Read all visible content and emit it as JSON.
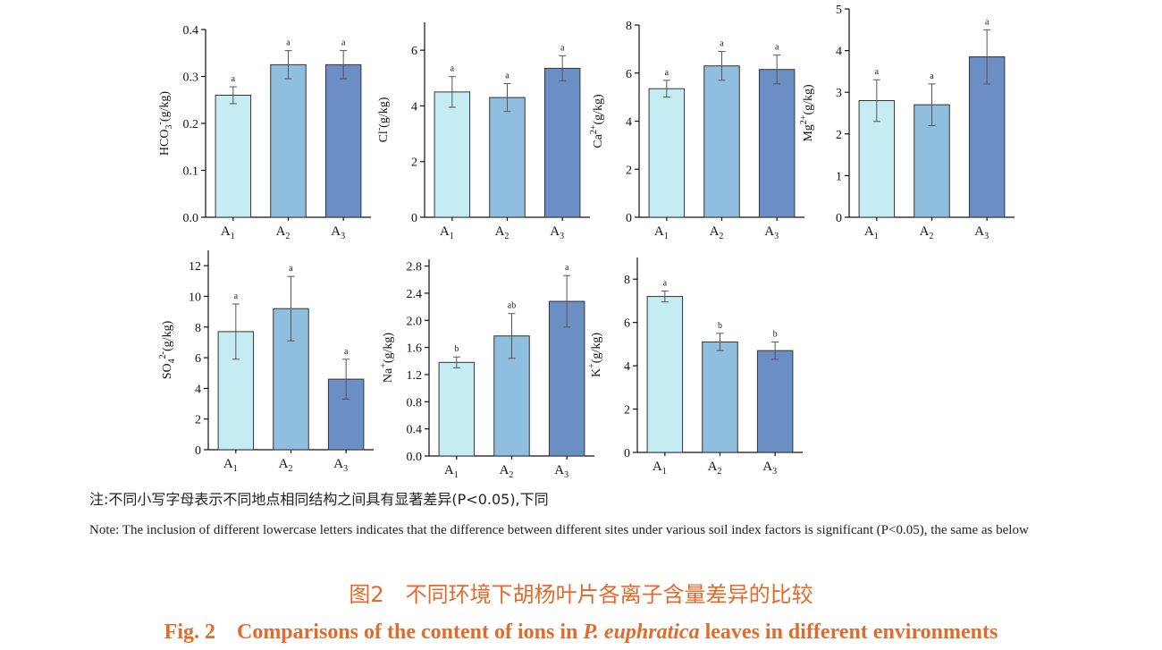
{
  "colors": {
    "A1": "#c5ecf2",
    "A2": "#8fbedf",
    "A3": "#6b8fc4",
    "title": "#e46a2a"
  },
  "chart_data": [
    {
      "type": "bar",
      "categories": [
        "A1",
        "A2",
        "A3"
      ],
      "values": [
        0.26,
        0.325,
        0.325
      ],
      "errors": [
        0.018,
        0.03,
        0.03
      ],
      "significance": [
        "a",
        "a",
        "a"
      ],
      "ylim": [
        0,
        0.4
      ],
      "yticks": [
        "0.0",
        "0.1",
        "0.2",
        "0.3",
        "0.4"
      ],
      "ylabel": "HCO3-(g/kg)",
      "grid": false
    },
    {
      "type": "bar",
      "categories": [
        "A1",
        "A2",
        "A3"
      ],
      "values": [
        4.5,
        4.3,
        5.35
      ],
      "errors": [
        0.55,
        0.5,
        0.45
      ],
      "significance": [
        "a",
        "a",
        "a"
      ],
      "ylim": [
        0,
        7
      ],
      "yticks": [
        "0",
        "2",
        "4",
        "6"
      ],
      "ylabel": "Cl-(g/kg)",
      "grid": false
    },
    {
      "type": "bar",
      "categories": [
        "A1",
        "A2",
        "A3"
      ],
      "values": [
        5.35,
        6.3,
        6.15
      ],
      "errors": [
        0.35,
        0.6,
        0.6
      ],
      "significance": [
        "a",
        "a",
        "a"
      ],
      "ylim": [
        0,
        8
      ],
      "yticks": [
        "0",
        "2",
        "4",
        "6",
        "8"
      ],
      "ylabel": "Ca2+(g/kg)",
      "grid": false
    },
    {
      "type": "bar",
      "categories": [
        "A1",
        "A2",
        "A3"
      ],
      "values": [
        2.8,
        2.7,
        3.85
      ],
      "errors": [
        0.5,
        0.5,
        0.65
      ],
      "significance": [
        "a",
        "a",
        "a"
      ],
      "ylim": [
        0,
        5
      ],
      "yticks": [
        "0",
        "1",
        "2",
        "3",
        "4",
        "5"
      ],
      "ylabel": "Mg2+(g/kg)",
      "grid": false
    },
    {
      "type": "bar",
      "categories": [
        "A1",
        "A2",
        "A3"
      ],
      "values": [
        7.7,
        9.2,
        4.6
      ],
      "errors": [
        1.8,
        2.1,
        1.3
      ],
      "significance": [
        "a",
        "a",
        "a"
      ],
      "ylim": [
        0,
        13
      ],
      "yticks": [
        "0",
        "2",
        "4",
        "6",
        "8",
        "10",
        "12"
      ],
      "ylabel": "SO42-(g/kg)",
      "grid": false
    },
    {
      "type": "bar",
      "categories": [
        "A1",
        "A2",
        "A3"
      ],
      "values": [
        1.38,
        1.77,
        2.28
      ],
      "errors": [
        0.08,
        0.33,
        0.38
      ],
      "significance": [
        "b",
        "ab",
        "a"
      ],
      "ylim": [
        0,
        2.9
      ],
      "yticks": [
        "0.0",
        "0.4",
        "0.8",
        "1.2",
        "1.6",
        "2.0",
        "2.4",
        "2.8"
      ],
      "ylabel": "Na+(g/kg)",
      "grid": false
    },
    {
      "type": "bar",
      "categories": [
        "A1",
        "A2",
        "A3"
      ],
      "values": [
        7.2,
        5.1,
        4.7
      ],
      "errors": [
        0.25,
        0.4,
        0.4
      ],
      "significance": [
        "a",
        "b",
        "b"
      ],
      "ylim": [
        0,
        9
      ],
      "yticks": [
        "0",
        "2",
        "4",
        "6",
        "8"
      ],
      "ylabel": "K+(g/kg)",
      "grid": false
    }
  ],
  "notes": {
    "cn": "注:不同小写字母表示不同地点相同结构之间具有显著差异(P<0.05),下同",
    "en": "Note: The inclusion of different lowercase letters indicates that the difference between different sites under various soil index factors is significant (P<0.05), the same as below"
  },
  "caption": {
    "cn": "图2　不同环境下胡杨叶片各离子含量差异的比较",
    "en_prefix": "Fig. 2　Comparisons of the content of ions in ",
    "en_species": "P. euphratica",
    "en_suffix": " leaves in different environments"
  }
}
